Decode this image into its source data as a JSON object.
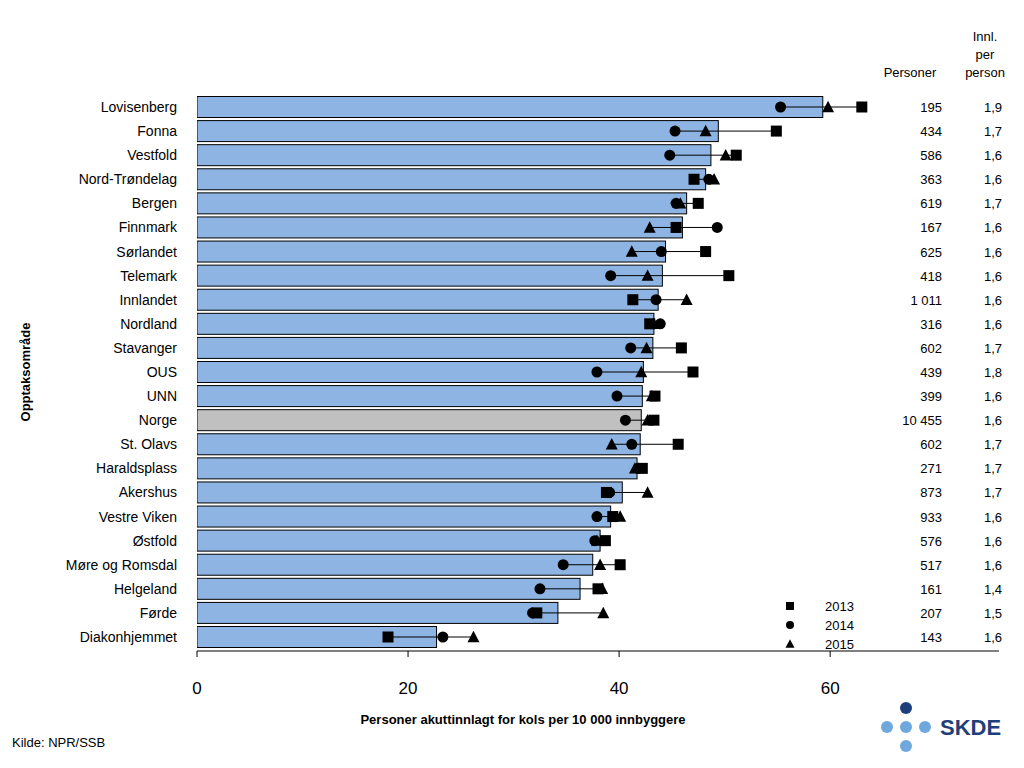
{
  "chart_data": {
    "type": "bar",
    "orientation": "horizontal",
    "x_label": "Personer akuttinnlagt for kols per 10 000 innbyggere",
    "y_label": "Opptaksområde",
    "source": "Kilde: NPR/SSB",
    "logo": "SKDE",
    "categories": [
      "Lovisenberg",
      "Fonna",
      "Vestfold",
      "Nord-Trøndelag",
      "Bergen",
      "Finnmark",
      "Sørlandet",
      "Telemark",
      "Innlandet",
      "Nordland",
      "Stavanger",
      "OUS",
      "UNN",
      "Norge",
      "St. Olavs",
      "Haraldsplass",
      "Akershus",
      "Vestre Viken",
      "Østfold",
      "Møre og Romsdal",
      "Helgeland",
      "Førde",
      "Diakonhjemmet"
    ],
    "values": [
      59.3,
      49.4,
      48.7,
      48.2,
      46.4,
      46.0,
      44.4,
      44.1,
      43.7,
      43.3,
      43.2,
      42.3,
      42.2,
      42.1,
      42.0,
      41.7,
      40.3,
      39.2,
      38.2,
      37.5,
      36.3,
      34.2,
      22.7
    ],
    "colors": [
      "#8db4e2",
      "#8db4e2",
      "#8db4e2",
      "#8db4e2",
      "#8db4e2",
      "#8db4e2",
      "#8db4e2",
      "#8db4e2",
      "#8db4e2",
      "#8db4e2",
      "#8db4e2",
      "#8db4e2",
      "#8db4e2",
      "#c0c0c0",
      "#8db4e2",
      "#8db4e2",
      "#8db4e2",
      "#8db4e2",
      "#8db4e2",
      "#8db4e2",
      "#8db4e2",
      "#8db4e2",
      "#8db4e2"
    ],
    "series": [
      {
        "name": "2013",
        "type": "scatter",
        "marker": "square",
        "color": "#000000",
        "values": [
          63.0,
          54.9,
          51.1,
          47.1,
          47.5,
          45.4,
          48.2,
          50.4,
          41.3,
          42.9,
          45.9,
          47.0,
          43.4,
          43.3,
          45.6,
          42.2,
          38.8,
          39.4,
          38.7,
          40.1,
          38.0,
          32.2,
          18.1
        ]
      },
      {
        "name": "2014",
        "type": "scatter",
        "marker": "circle",
        "color": "#000000",
        "values": [
          55.3,
          45.3,
          44.8,
          48.5,
          45.4,
          49.3,
          44.0,
          39.2,
          43.5,
          43.9,
          41.1,
          37.9,
          39.8,
          40.6,
          41.2,
          41.8,
          39.1,
          37.9,
          37.7,
          34.7,
          32.5,
          31.8,
          23.3
        ]
      },
      {
        "name": "2015",
        "type": "scatter",
        "marker": "triangle",
        "color": "#000000",
        "values": [
          59.8,
          48.2,
          50.1,
          49.0,
          45.8,
          42.9,
          41.2,
          42.7,
          46.4,
          43.3,
          42.6,
          42.1,
          43.1,
          42.7,
          39.3,
          41.5,
          42.7,
          40.1,
          37.9,
          38.2,
          38.4,
          38.5,
          26.2
        ]
      }
    ],
    "columns": [
      {
        "header": "Personer",
        "values": [
          195,
          434,
          586,
          363,
          619,
          167,
          625,
          418,
          1011,
          316,
          602,
          439,
          399,
          10455,
          602,
          271,
          873,
          933,
          576,
          517,
          161,
          207,
          143
        ],
        "value_labels": [
          "195",
          "434",
          "586",
          "363",
          "619",
          "167",
          "625",
          "418",
          "1 011",
          "316",
          "602",
          "439",
          "399",
          "10 455",
          "602",
          "271",
          "873",
          "933",
          "576",
          "517",
          "161",
          "207",
          "143"
        ]
      },
      {
        "header": "Innl. per person",
        "values": [
          1.9,
          1.7,
          1.6,
          1.6,
          1.7,
          1.6,
          1.6,
          1.6,
          1.6,
          1.6,
          1.7,
          1.8,
          1.6,
          1.6,
          1.7,
          1.7,
          1.7,
          1.6,
          1.6,
          1.6,
          1.4,
          1.5,
          1.6
        ],
        "value_labels": [
          "1,9",
          "1,7",
          "1,6",
          "1,6",
          "1,7",
          "1,6",
          "1,6",
          "1,6",
          "1,6",
          "1,6",
          "1,7",
          "1,8",
          "1,6",
          "1,6",
          "1,7",
          "1,7",
          "1,7",
          "1,6",
          "1,6",
          "1,6",
          "1,4",
          "1,5",
          "1,6"
        ]
      }
    ],
    "xlim": [
      0,
      76
    ],
    "xticks": [
      0,
      20,
      40,
      60
    ],
    "legend": "lower right",
    "grid": false
  }
}
